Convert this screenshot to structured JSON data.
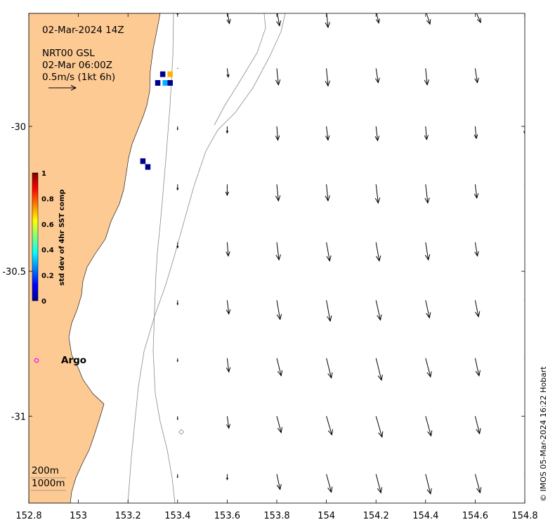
{
  "title_date": "02-Mar-2024 14Z",
  "product_name": "NRT00 GSL",
  "product_time": "02-Mar 06:00Z",
  "scale_label": "0.5m/s (1kt 6h)",
  "colorbar": {
    "label": "std dev of 4hr SST comp",
    "ticks": [
      "1",
      "0.8",
      "0.6",
      "0.4",
      "0.2",
      "0"
    ],
    "colormap": "jet"
  },
  "argo_label": "Argo",
  "argo_color": "#ff00ff",
  "land_color": "#fdca94",
  "isobaths": [
    "200m",
    "1000m"
  ],
  "copyright": "© IMOS 05-Mar-2024 16:22 Hobart",
  "x_ticks": [
    "152.8",
    "153",
    "153.2",
    "153.4",
    "153.6",
    "153.8",
    "154",
    "154.2",
    "154.4",
    "154.6",
    "154.8"
  ],
  "y_ticks": [
    "-30",
    "-30.5",
    "-31"
  ],
  "current_vectors": {
    "lon": [
      153.4,
      153.6,
      153.8,
      154.0,
      154.2,
      154.4,
      154.6,
      154.8
    ],
    "lat": [
      -29.6,
      -29.8,
      -30.0,
      -30.2,
      -30.4,
      -30.6,
      -30.8,
      -31.0,
      -31.2
    ],
    "scale_reference_speed_ms": 0.5,
    "note_units": "east/north speed m/s",
    "u": [
      [
        0.0,
        0.04,
        0.05,
        0.03,
        0.05,
        0.08,
        0.1,
        0.08
      ],
      [
        0.0,
        0.02,
        0.03,
        0.03,
        0.04,
        0.03,
        0.04,
        0.07
      ],
      [
        0.0,
        0.0,
        0.02,
        0.03,
        0.03,
        0.02,
        0.02,
        0.0
      ],
      [
        0.0,
        0.0,
        0.03,
        0.03,
        0.04,
        0.04,
        0.03,
        0.0
      ],
      [
        0.0,
        0.02,
        0.04,
        0.06,
        0.06,
        0.05,
        0.04,
        0.0
      ],
      [
        0.0,
        0.03,
        0.06,
        0.07,
        0.08,
        0.07,
        0.06,
        0.0
      ],
      [
        0.0,
        0.03,
        0.08,
        0.09,
        0.1,
        0.09,
        0.07,
        0.0
      ],
      [
        0.0,
        0.03,
        0.08,
        0.1,
        0.11,
        0.1,
        0.08,
        0.0
      ],
      [
        0.0,
        0.0,
        0.06,
        0.09,
        0.09,
        0.09,
        0.09,
        0.0
      ]
    ],
    "v": [
      [
        -0.08,
        -0.24,
        -0.28,
        -0.31,
        -0.23,
        -0.25,
        -0.22,
        -0.14
      ],
      [
        -0.0,
        -0.16,
        -0.3,
        -0.32,
        -0.26,
        -0.3,
        -0.26,
        -0.13
      ],
      [
        -0.06,
        -0.12,
        -0.25,
        -0.25,
        -0.26,
        -0.24,
        -0.22,
        -0.13
      ],
      [
        -0.1,
        -0.2,
        -0.3,
        -0.3,
        -0.34,
        -0.34,
        -0.25,
        0.0
      ],
      [
        -0.1,
        -0.25,
        -0.32,
        -0.34,
        -0.34,
        -0.32,
        -0.25,
        0.0
      ],
      [
        -0.08,
        -0.25,
        -0.35,
        -0.38,
        -0.36,
        -0.32,
        -0.3,
        0.0
      ],
      [
        -0.06,
        -0.25,
        -0.32,
        -0.36,
        -0.4,
        -0.34,
        -0.32,
        0.0
      ],
      [
        -0.06,
        -0.22,
        -0.3,
        -0.34,
        -0.38,
        -0.36,
        -0.32,
        0.0
      ],
      [
        -0.06,
        -0.1,
        -0.28,
        -0.33,
        -0.34,
        -0.36,
        -0.34,
        0.0
      ]
    ]
  },
  "sst_stddev_cells": [
    {
      "lon": 153.37,
      "lat": -29.58,
      "value": 0.0
    },
    {
      "lon": 153.34,
      "lat": -29.82,
      "value": 0.0
    },
    {
      "lon": 153.32,
      "lat": -29.85,
      "value": 0.0
    },
    {
      "lon": 153.35,
      "lat": -29.85,
      "value": 0.3
    },
    {
      "lon": 153.37,
      "lat": -29.82,
      "value": 0.7
    },
    {
      "lon": 153.37,
      "lat": -29.85,
      "value": 0.0
    },
    {
      "lon": 153.26,
      "lat": -30.12,
      "value": 0.0
    },
    {
      "lon": 153.28,
      "lat": -30.14,
      "value": 0.0
    }
  ]
}
